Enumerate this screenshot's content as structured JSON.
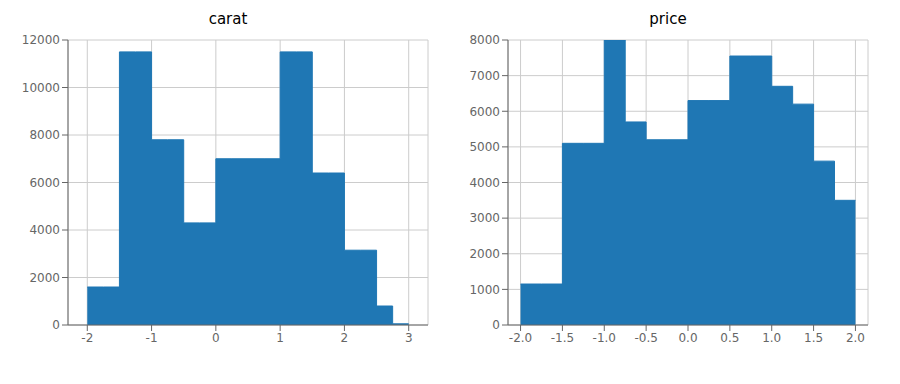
{
  "chart_data": [
    {
      "type": "histogram",
      "title": "carat",
      "bins": [
        -2.0,
        -1.75,
        -1.5,
        -1.25,
        -1.0,
        -0.75,
        -0.5,
        -0.25,
        0.0,
        0.25,
        0.5,
        0.75,
        1.0,
        1.25,
        1.5,
        1.75,
        2.0,
        2.25,
        2.5,
        2.75,
        3.0
      ],
      "values": [
        1600,
        1600,
        11500,
        11500,
        7800,
        7800,
        4300,
        4300,
        7000,
        7000,
        7000,
        7000,
        11500,
        11500,
        6400,
        6400,
        3150,
        3150,
        800,
        50
      ],
      "xlim": [
        -2.3,
        3.3
      ],
      "ylim": [
        0,
        12000
      ],
      "xticks": [
        -2,
        -1,
        0,
        1,
        2,
        3
      ],
      "yticks": [
        0,
        2000,
        4000,
        6000,
        8000,
        10000,
        12000
      ],
      "grid": true,
      "color": "#1f77b4"
    },
    {
      "type": "histogram",
      "title": "price",
      "bins": [
        -2.0,
        -1.75,
        -1.5,
        -1.25,
        -1.0,
        -0.75,
        -0.5,
        -0.25,
        0.0,
        0.25,
        0.5,
        0.75,
        1.0,
        1.25,
        1.5,
        1.75,
        2.0
      ],
      "values": [
        1150,
        1150,
        5100,
        5100,
        8000,
        5700,
        5200,
        5200,
        6300,
        6300,
        7550,
        7550,
        6700,
        6200,
        4600,
        3500
      ],
      "xlim": [
        -2.15,
        2.15
      ],
      "ylim": [
        0,
        8000
      ],
      "xticks": [
        {
          "value": -2.0,
          "label": "-2.0"
        },
        {
          "value": -1.5,
          "label": "-1.5"
        },
        {
          "value": -1.0,
          "label": "-1.0"
        },
        {
          "value": -0.5,
          "label": "-0.5"
        },
        {
          "value": 0.0,
          "label": "0.0"
        },
        {
          "value": 0.5,
          "label": "0.5"
        },
        {
          "value": 1.0,
          "label": "1.0"
        },
        {
          "value": 1.5,
          "label": "1.5"
        },
        {
          "value": 2.0,
          "label": "2.0"
        }
      ],
      "yticks": [
        0,
        1000,
        2000,
        3000,
        4000,
        5000,
        6000,
        7000,
        8000
      ],
      "grid": true,
      "color": "#1f77b4"
    }
  ]
}
